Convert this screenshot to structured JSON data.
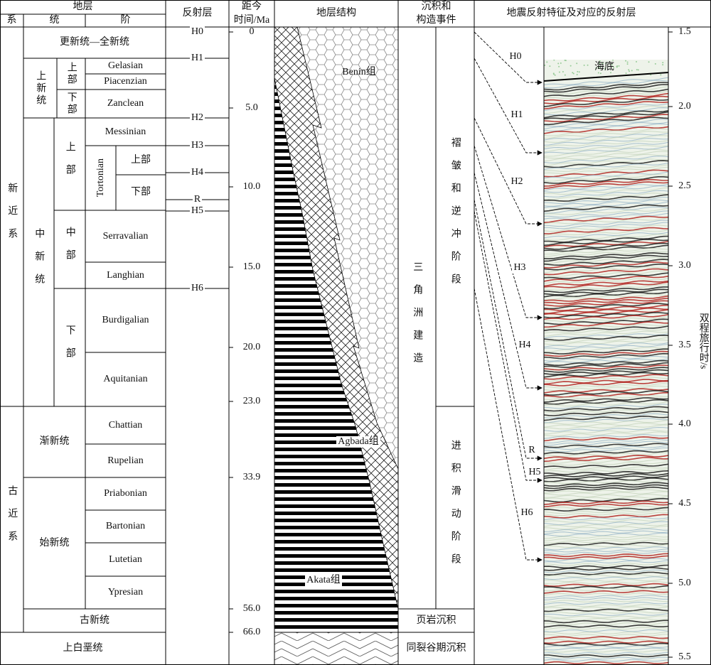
{
  "header": {
    "strata": "地层",
    "system": "系",
    "series": "统",
    "stage": "阶",
    "reflector": "反射层",
    "age": [
      "距今",
      "时间/Ma"
    ],
    "structure": "地层结构",
    "events": [
      "沉积和",
      "构造事件"
    ],
    "seismic": "地震反射特征及对应的反射层"
  },
  "systems": [
    "新近系",
    "古近系",
    "上白垩统"
  ],
  "series": [
    "更新统—全新统",
    "上新统",
    "中新统",
    "渐新统",
    "始新统",
    "古新统"
  ],
  "subseries": [
    "上部",
    "下部",
    "上部",
    "中部",
    "下部"
  ],
  "stages": [
    "Gelasian",
    "Piacenzian",
    "Zanclean",
    "Messinian",
    "Tortonian",
    "Serravalian",
    "Langhian",
    "Burdigalian",
    "Aquitanian",
    "Chattian",
    "Rupelian",
    "Priabonian",
    "Bartonian",
    "Lutetian",
    "Ypresian"
  ],
  "tortonian_parts": [
    "上部",
    "下部"
  ],
  "reflectors": [
    "H0",
    "H1",
    "H2",
    "H3",
    "H4",
    "R",
    "H5",
    "H6"
  ],
  "ages": [
    "0",
    "5.0",
    "10.0",
    "15.0",
    "20.0",
    "23.0",
    "33.9",
    "56.0",
    "66.0"
  ],
  "formations": [
    "Benin组",
    "Agbada组",
    "Akata组"
  ],
  "events": [
    "三角洲建造",
    "褶皱和逆冲阶段",
    "进积滑动阶段",
    "页岩沉积",
    "同裂谷期沉积"
  ],
  "seismic": {
    "seafloor": "海底",
    "time_ticks": [
      "1.5",
      "2.0",
      "2.5",
      "3.0",
      "3.5",
      "4.0",
      "4.5",
      "5.0",
      "5.5"
    ],
    "axis_label": "双程旅行时/s"
  }
}
